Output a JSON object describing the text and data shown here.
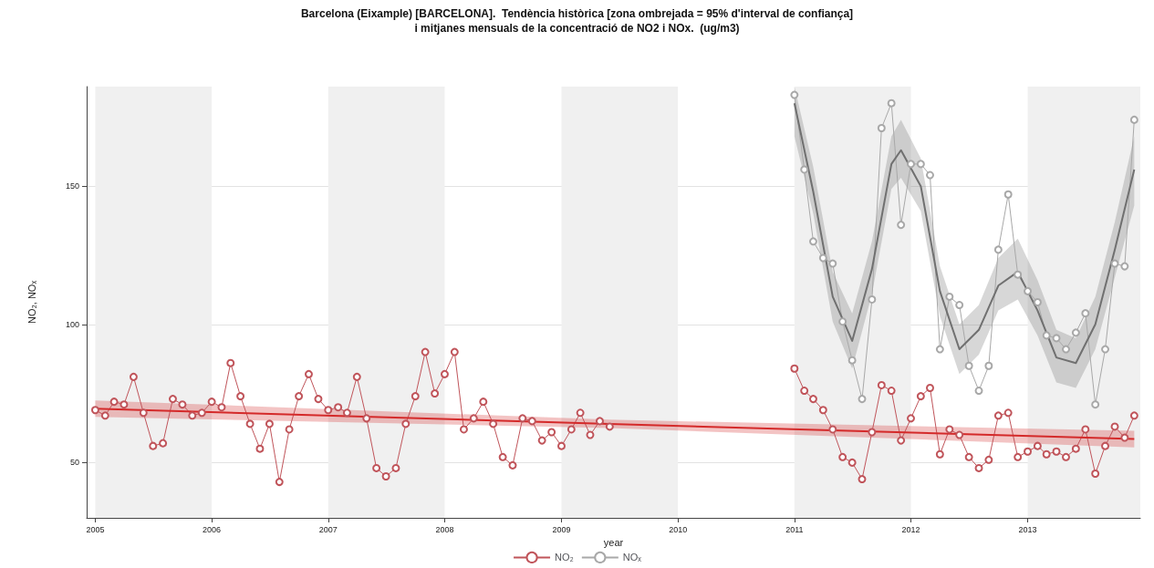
{
  "chart_data": {
    "type": "line",
    "title": "Barcelona (Eixample) [BARCELONA].  Tendència històrica [zona ombrejada = 95% d'interval de confiança]\ni mitjanes mensuals de la concentració de NO2 i NOx.  (ug/m3)",
    "xlabel": "year",
    "ylabel": "NO₂, NOₓ",
    "xlim": [
      "2004-12-05",
      "2013-12-20"
    ],
    "xticks": [
      "2005",
      "2006",
      "2007",
      "2008",
      "2009",
      "2010",
      "2011",
      "2012",
      "2013"
    ],
    "ylim": [
      30,
      186
    ],
    "yticks": [
      50,
      100,
      150
    ],
    "grid": "y",
    "legend": "bottom",
    "bands": [
      {
        "axis": "x",
        "from": "2005",
        "to": "2006",
        "color": "#f0f0f0"
      },
      {
        "axis": "x",
        "from": "2007",
        "to": "2008",
        "color": "#f0f0f0"
      },
      {
        "axis": "x",
        "from": "2009",
        "to": "2010",
        "color": "#f0f0f0"
      },
      {
        "axis": "x",
        "from": "2011",
        "to": "2012",
        "color": "#f0f0f0"
      },
      {
        "axis": "x",
        "from": "2013",
        "to": "2013-12-20",
        "color": "#f0f0f0"
      }
    ],
    "series": [
      {
        "name": "NO₂",
        "color": "#c0545a",
        "marker": "circle",
        "x": [
          "2005-01",
          "2005-02",
          "2005-03",
          "2005-04",
          "2005-05",
          "2005-06",
          "2005-07",
          "2005-08",
          "2005-09",
          "2005-10",
          "2005-11",
          "2005-12",
          "2006-01",
          "2006-02",
          "2006-03",
          "2006-04",
          "2006-05",
          "2006-06",
          "2006-07",
          "2006-08",
          "2006-09",
          "2006-10",
          "2006-11",
          "2006-12",
          "2007-01",
          "2007-02",
          "2007-03",
          "2007-04",
          "2007-05",
          "2007-06",
          "2007-07",
          "2007-08",
          "2007-09",
          "2007-10",
          "2007-11",
          "2007-12",
          "2008-01",
          "2008-02",
          "2008-03",
          "2008-04",
          "2008-05",
          "2008-06",
          "2008-07",
          "2008-08",
          "2008-09",
          "2008-10",
          "2008-11",
          "2008-12",
          "2009-01",
          "2009-02",
          "2009-03",
          "2009-04",
          "2009-05",
          "2009-06",
          "2010-06",
          "2011-01",
          "2011-02",
          "2011-03",
          "2011-04",
          "2011-05",
          "2011-06",
          "2011-07",
          "2011-08",
          "2011-09",
          "2011-10",
          "2011-11",
          "2011-12",
          "2012-01",
          "2012-02",
          "2012-03",
          "2012-04",
          "2012-05",
          "2012-06",
          "2012-07",
          "2012-08",
          "2012-09",
          "2012-10",
          "2012-11",
          "2012-12",
          "2013-01",
          "2013-02",
          "2013-03",
          "2013-04",
          "2013-05",
          "2013-06",
          "2013-07",
          "2013-08",
          "2013-09",
          "2013-10",
          "2013-11",
          "2013-12"
        ],
        "values": [
          69,
          67,
          72,
          71,
          81,
          68,
          56,
          57,
          73,
          71,
          67,
          68,
          72,
          70,
          86,
          74,
          64,
          55,
          64,
          43,
          62,
          74,
          82,
          73,
          69,
          70,
          68,
          81,
          66,
          48,
          45,
          48,
          64,
          74,
          90,
          75,
          82,
          90,
          62,
          66,
          72,
          64,
          52,
          49,
          66,
          65,
          58,
          61,
          56,
          62,
          68,
          60,
          65,
          63,
          null,
          84,
          76,
          73,
          69,
          62,
          52,
          50,
          44,
          61,
          78,
          76,
          58,
          66,
          74,
          77,
          53,
          62,
          60,
          52,
          48,
          51,
          67,
          68,
          52,
          54,
          56,
          53,
          54,
          52,
          55,
          62,
          46,
          56,
          63,
          59,
          67
        ]
      },
      {
        "color": "#d42a2a",
        "marker": "none",
        "x": [
          "2005-01",
          "2009-06",
          "2013-12"
        ],
        "values": [
          69.5,
          64,
          58.5
        ],
        "lower": [
          66.5,
          62.5,
          55.5
        ],
        "upper": [
          72.5,
          65.5,
          61.5
        ]
      },
      {
        "name": "NOₓ",
        "color": "#a8a8a8",
        "marker": "circle",
        "x": [
          "2011-01",
          "2011-02",
          "2011-03",
          "2011-04",
          "2011-05",
          "2011-06",
          "2011-07",
          "2011-08",
          "2011-09",
          "2011-10",
          "2011-11",
          "2011-12",
          "2012-01",
          "2012-02",
          "2012-03",
          "2012-04",
          "2012-05",
          "2012-06",
          "2012-07",
          "2012-08",
          "2012-09",
          "2012-10",
          "2012-11",
          "2012-12",
          "2013-01",
          "2013-02",
          "2013-03",
          "2013-04",
          "2013-05",
          "2013-06",
          "2013-07",
          "2013-08",
          "2013-09",
          "2013-10",
          "2013-11",
          "2013-12"
        ],
        "values": [
          183,
          156,
          130,
          124,
          122,
          101,
          87,
          73,
          109,
          171,
          180,
          136,
          158,
          158,
          154,
          91,
          110,
          107,
          85,
          76,
          85,
          127,
          147,
          118,
          112,
          108,
          96,
          95,
          91,
          97,
          104,
          71,
          91,
          122,
          121,
          174
        ]
      },
      {
        "color": "#707070",
        "marker": "none",
        "x": [
          "2011-01",
          "2011-03",
          "2011-05",
          "2011-07",
          "2011-09",
          "2011-11",
          "2011-12",
          "2012-02",
          "2012-04",
          "2012-06",
          "2012-08",
          "2012-10",
          "2012-12",
          "2013-02",
          "2013-04",
          "2013-06",
          "2013-08",
          "2013-10",
          "2013-12"
        ],
        "values": [
          180,
          148,
          110,
          94,
          120,
          158,
          163,
          150,
          112,
          91,
          98,
          114,
          119,
          105,
          88,
          86,
          100,
          127,
          156
        ],
        "lower": [
          168,
          140,
          101,
          84,
          111,
          149,
          153,
          141,
          103,
          82,
          89,
          105,
          109,
          96,
          79,
          77,
          91,
          117,
          143
        ],
        "upper": [
          186,
          157,
          119,
          104,
          130,
          168,
          174,
          160,
          121,
          100,
          107,
          124,
          131,
          116,
          98,
          95,
          110,
          137,
          168
        ]
      }
    ]
  }
}
